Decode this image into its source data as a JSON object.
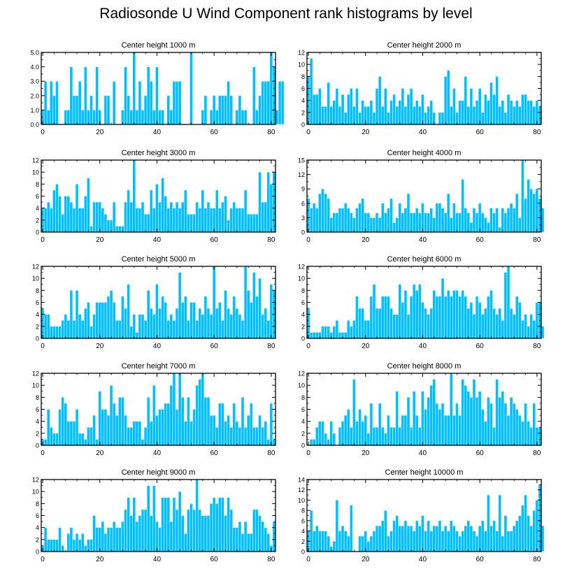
{
  "figure_title": "Radiosonde U Wind Component rank histograms by level",
  "colors": {
    "bar_fill": "#00bfff",
    "bar_edge": "#ffffff",
    "axis": "#000000",
    "background": "#ffffff"
  },
  "chart_data": [
    {
      "type": "bar",
      "title": "Center height 1000 m",
      "x_ticks": [
        0,
        20,
        40,
        60,
        80
      ],
      "xlim": [
        -0.5,
        81.5
      ],
      "y_ticks": [
        0.0,
        1.0,
        2.0,
        3.0,
        4.0,
        5.0
      ],
      "y_tick_labels": [
        "0.0",
        "1.0",
        "2.0",
        "3.0",
        "4.0",
        "5.0"
      ],
      "ylim": [
        0,
        5
      ],
      "values": [
        1,
        3,
        1,
        3,
        2,
        3,
        0,
        0,
        1,
        1,
        4,
        2,
        2,
        3,
        1,
        4,
        1,
        2,
        1,
        4,
        1,
        0,
        2,
        2,
        0,
        3,
        0,
        0,
        1,
        4,
        2,
        1,
        5,
        1,
        3,
        1,
        2,
        4,
        3,
        1,
        4,
        1,
        1,
        0,
        2,
        1,
        3,
        3,
        3,
        0,
        0,
        0,
        5,
        0,
        0,
        0,
        1,
        2,
        0,
        1,
        2,
        1,
        2,
        2,
        2,
        3,
        2,
        0,
        1,
        2,
        1,
        1,
        0,
        0,
        4,
        1,
        2,
        3,
        3,
        3,
        5,
        4,
        1,
        3,
        3
      ]
    },
    {
      "type": "bar",
      "title": "Center height 2000 m",
      "x_ticks": [
        0,
        20,
        40,
        60,
        80
      ],
      "xlim": [
        -0.5,
        81.5
      ],
      "y_ticks": [
        0,
        2,
        4,
        6,
        8,
        10,
        12
      ],
      "y_tick_labels": [
        "0",
        "2",
        "4",
        "6",
        "8",
        "10",
        "12"
      ],
      "ylim": [
        0,
        12
      ],
      "values": [
        8,
        11,
        5,
        5,
        6,
        3,
        3,
        7,
        3,
        4,
        6,
        3,
        5,
        2,
        5,
        6,
        3,
        6,
        2,
        4,
        3,
        3,
        4,
        2,
        6,
        8,
        3,
        6,
        2,
        4,
        5,
        3,
        4,
        6,
        3,
        5,
        6,
        3,
        4,
        3,
        5,
        2,
        3,
        4,
        2,
        0,
        2,
        2,
        8,
        9,
        3,
        6,
        2,
        4,
        4,
        8,
        3,
        6,
        3,
        4,
        6,
        2,
        5,
        4,
        7,
        5,
        8,
        3,
        4,
        2,
        5,
        4,
        3,
        4,
        3,
        5,
        5,
        4,
        4,
        3,
        4,
        3
      ]
    },
    {
      "type": "bar",
      "title": "Center height 3000 m",
      "x_ticks": [
        0,
        20,
        40,
        60,
        80
      ],
      "xlim": [
        -0.5,
        81.5
      ],
      "y_ticks": [
        0,
        2,
        4,
        6,
        8,
        10,
        12
      ],
      "y_tick_labels": [
        "0",
        "2",
        "4",
        "6",
        "8",
        "10",
        "12"
      ],
      "ylim": [
        0,
        12
      ],
      "values": [
        4,
        4,
        5,
        4,
        7,
        8,
        6,
        3,
        6,
        6,
        5,
        4,
        8,
        4,
        4,
        6,
        9,
        1,
        5,
        5,
        5,
        4,
        3,
        2,
        2,
        5,
        1,
        1,
        1,
        5,
        7,
        5,
        12,
        4,
        4,
        5,
        3,
        3,
        7,
        4,
        8,
        5,
        9,
        6,
        4,
        5,
        4,
        5,
        4,
        5,
        7,
        3,
        3,
        3,
        5,
        4,
        7,
        4,
        5,
        4,
        4,
        7,
        4,
        5,
        6,
        2,
        4,
        5,
        4,
        4,
        4,
        7,
        3,
        3,
        3,
        3,
        10,
        5,
        5,
        10,
        8,
        10
      ]
    },
    {
      "type": "bar",
      "title": "Center height 4000 m",
      "x_ticks": [
        0,
        20,
        40,
        60,
        80
      ],
      "xlim": [
        -0.5,
        81.5
      ],
      "y_ticks": [
        0,
        3,
        6,
        9,
        12,
        15
      ],
      "y_tick_labels": [
        "0",
        "3",
        "6",
        "9",
        "12",
        "15"
      ],
      "ylim": [
        0,
        15
      ],
      "values": [
        7,
        5,
        6,
        5,
        8,
        9,
        8,
        7,
        3,
        4,
        4,
        5,
        5,
        6,
        5,
        4,
        3,
        5,
        6,
        7,
        4,
        4,
        3,
        3,
        4,
        3,
        6,
        4,
        5,
        7,
        2,
        3,
        6,
        4,
        5,
        8,
        4,
        4,
        5,
        4,
        6,
        4,
        4,
        5,
        3,
        6,
        6,
        5,
        4,
        8,
        3,
        6,
        4,
        4,
        11,
        5,
        4,
        2,
        5,
        4,
        6,
        4,
        3,
        2,
        5,
        4,
        5,
        1,
        5,
        4,
        5,
        6,
        5,
        8,
        3,
        15,
        7,
        11,
        9,
        8,
        9,
        7,
        5
      ]
    },
    {
      "type": "bar",
      "title": "Center height 5000 m",
      "x_ticks": [
        0,
        20,
        40,
        60,
        80
      ],
      "xlim": [
        -0.5,
        81.5
      ],
      "y_ticks": [
        0,
        2,
        4,
        6,
        8,
        10,
        12
      ],
      "y_tick_labels": [
        "0",
        "2",
        "4",
        "6",
        "8",
        "10",
        "12"
      ],
      "ylim": [
        0,
        12
      ],
      "values": [
        5,
        4,
        4,
        2,
        2,
        2,
        2,
        3,
        4,
        3,
        8,
        3,
        8,
        4,
        3,
        5,
        6,
        2,
        4,
        6,
        6,
        6,
        6,
        7,
        8,
        6,
        3,
        3,
        7,
        5,
        9,
        2,
        4,
        1,
        4,
        4,
        3,
        8,
        5,
        4,
        9,
        5,
        7,
        6,
        3,
        4,
        3,
        5,
        11,
        6,
        7,
        3,
        6,
        6,
        3,
        5,
        4,
        7,
        5,
        4,
        12,
        5,
        6,
        3,
        8,
        5,
        4,
        7,
        5,
        4,
        3,
        12,
        8,
        6,
        11,
        7,
        10,
        4,
        5,
        3,
        9,
        8
      ]
    },
    {
      "type": "bar",
      "title": "Center height 6000 m",
      "x_ticks": [
        0,
        20,
        40,
        60,
        80
      ],
      "xlim": [
        -0.5,
        81.5
      ],
      "y_ticks": [
        0,
        2,
        4,
        6,
        8,
        10,
        12
      ],
      "y_tick_labels": [
        "0",
        "2",
        "4",
        "6",
        "8",
        "10",
        "12"
      ],
      "ylim": [
        0,
        12
      ],
      "values": [
        5,
        1,
        1,
        1,
        1,
        2,
        2,
        2,
        1,
        2,
        3,
        1,
        1,
        1,
        3,
        2,
        3,
        7,
        5,
        5,
        3,
        3,
        7,
        9,
        5,
        5,
        7,
        7,
        7,
        5,
        4,
        4,
        9,
        6,
        8,
        4,
        7,
        9,
        8,
        9,
        6,
        5,
        4,
        5,
        8,
        7,
        7,
        10,
        7,
        8,
        7,
        8,
        8,
        7,
        8,
        7,
        5,
        6,
        4,
        7,
        6,
        4,
        5,
        7,
        8,
        5,
        4,
        5,
        3,
        11,
        12,
        5,
        4,
        7,
        6,
        3,
        4,
        2,
        4,
        3,
        6,
        6,
        2
      ]
    },
    {
      "type": "bar",
      "title": "Center height 7000 m",
      "x_ticks": [
        0,
        20,
        40,
        60,
        80
      ],
      "xlim": [
        -0.5,
        81.5
      ],
      "y_ticks": [
        0,
        2,
        4,
        6,
        8,
        10,
        12
      ],
      "y_tick_labels": [
        "0",
        "2",
        "4",
        "6",
        "8",
        "10",
        "12"
      ],
      "ylim": [
        0,
        12
      ],
      "values": [
        1,
        1,
        6,
        3,
        2,
        2,
        6,
        8,
        7,
        4,
        4,
        4,
        6,
        2,
        2,
        1,
        3,
        3,
        5,
        1,
        9,
        6,
        6,
        5,
        10,
        7,
        5,
        8,
        8,
        5,
        3,
        3,
        4,
        4,
        4,
        1,
        3,
        8,
        4,
        10,
        5,
        6,
        6,
        7,
        7,
        10,
        12,
        6,
        12,
        8,
        4,
        8,
        4,
        6,
        10,
        11,
        12,
        8,
        8,
        5,
        5,
        3,
        7,
        7,
        4,
        5,
        3,
        7,
        4,
        3,
        8,
        3,
        5,
        7,
        3,
        3,
        5,
        3,
        4,
        1,
        7,
        1
      ]
    },
    {
      "type": "bar",
      "title": "Center height 8000 m",
      "x_ticks": [
        0,
        20,
        40,
        60,
        80
      ],
      "xlim": [
        -0.5,
        81.5
      ],
      "y_ticks": [
        0,
        2,
        4,
        6,
        8,
        10,
        12
      ],
      "y_tick_labels": [
        "0",
        "2",
        "4",
        "6",
        "8",
        "10",
        "12"
      ],
      "ylim": [
        0,
        12
      ],
      "values": [
        0,
        1,
        1,
        3,
        4,
        4,
        2,
        1,
        4,
        2,
        0,
        3,
        4,
        5,
        6,
        3,
        11,
        4,
        6,
        4,
        5,
        2,
        7,
        3,
        3,
        7,
        3,
        2,
        5,
        3,
        3,
        9,
        3,
        5,
        5,
        8,
        3,
        9,
        5,
        3,
        9,
        6,
        8,
        10,
        11,
        7,
        6,
        7,
        5,
        5,
        12,
        5,
        7,
        5,
        11,
        10,
        9,
        8,
        11,
        8,
        9,
        6,
        4,
        8,
        7,
        3,
        11,
        8,
        9,
        7,
        5,
        8,
        7,
        6,
        5,
        4,
        7,
        4,
        3,
        7,
        3,
        3
      ]
    },
    {
      "type": "bar",
      "title": "Center height 9000 m",
      "x_ticks": [
        0,
        20,
        40,
        60,
        80
      ],
      "xlim": [
        -0.5,
        81.5
      ],
      "y_ticks": [
        0,
        2,
        4,
        6,
        8,
        10,
        12
      ],
      "y_tick_labels": [
        "0",
        "2",
        "4",
        "6",
        "8",
        "10",
        "12"
      ],
      "ylim": [
        0,
        12
      ],
      "values": [
        1,
        4,
        2,
        2,
        2,
        2,
        4,
        1,
        0,
        3,
        4,
        2,
        3,
        2,
        3,
        1,
        2,
        2,
        6,
        4,
        4,
        5,
        3,
        4,
        4,
        5,
        4,
        4,
        5,
        7,
        9,
        6,
        9,
        5,
        6,
        7,
        7,
        11,
        6,
        11,
        5,
        4,
        9,
        9,
        9,
        5,
        9,
        7,
        10,
        6,
        3,
        7,
        8,
        7,
        12,
        7,
        6,
        6,
        6,
        8,
        9,
        8,
        9,
        9,
        6,
        9,
        7,
        4,
        4,
        5,
        3,
        5,
        3,
        3,
        7,
        7,
        6,
        5,
        4,
        3,
        1,
        5
      ]
    },
    {
      "type": "bar",
      "title": "Center height 10000 m",
      "x_ticks": [
        0,
        20,
        40,
        60,
        80
      ],
      "xlim": [
        -0.5,
        81.5
      ],
      "y_ticks": [
        0,
        2,
        4,
        6,
        8,
        10,
        12,
        14
      ],
      "y_tick_labels": [
        "0",
        "2",
        "4",
        "6",
        "8",
        "10",
        "12",
        "14"
      ],
      "ylim": [
        0,
        14
      ],
      "values": [
        4,
        8,
        4,
        5,
        4,
        4,
        4,
        3,
        1,
        2,
        10,
        4,
        5,
        4,
        3,
        9,
        0,
        0,
        3,
        3,
        4,
        2,
        3,
        4,
        5,
        5,
        6,
        8,
        3,
        4,
        6,
        7,
        5,
        5,
        6,
        5,
        5,
        4,
        6,
        5,
        7,
        4,
        6,
        4,
        5,
        5,
        6,
        4,
        5,
        4,
        6,
        5,
        4,
        3,
        4,
        5,
        6,
        5,
        4,
        3,
        5,
        6,
        4,
        11,
        5,
        6,
        4,
        11,
        3,
        7,
        4,
        4,
        5,
        6,
        7,
        9,
        11,
        7,
        5,
        8,
        10,
        13,
        5
      ]
    }
  ]
}
